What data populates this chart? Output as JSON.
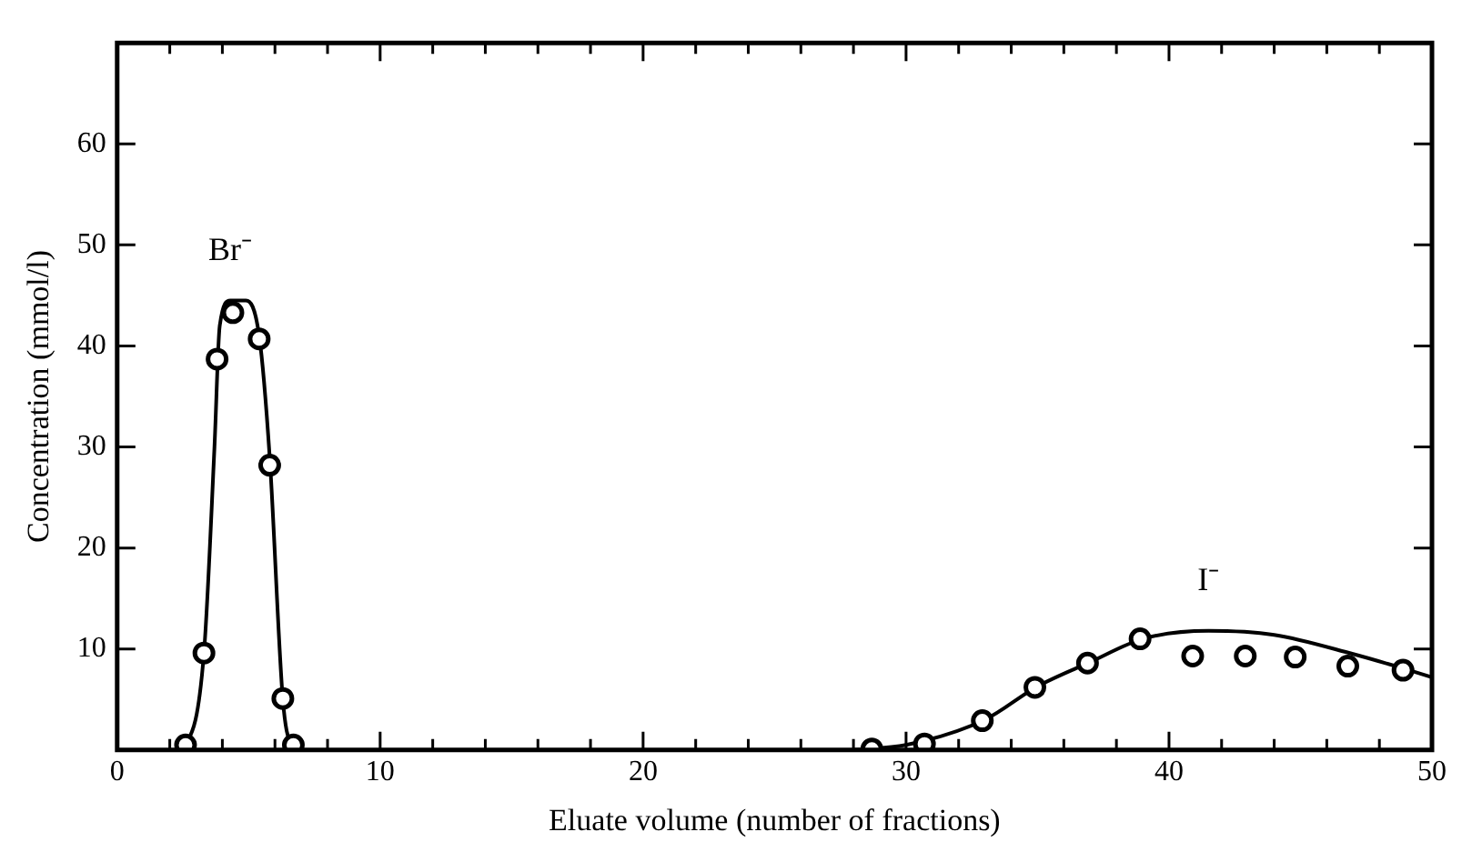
{
  "chart_data": {
    "type": "scatter",
    "xlabel": "Eluate volume (number of fractions)",
    "ylabel": "Concentration (mmol/l)",
    "xlim": [
      0,
      50
    ],
    "ylim": [
      0,
      70
    ],
    "xticks": [
      0,
      {
        "value": 2,
        "label": null
      },
      {
        "value": 4,
        "label": null
      },
      {
        "value": 6,
        "label": null
      },
      {
        "value": 8,
        "label": null
      },
      10,
      {
        "value": 12,
        "label": null
      },
      {
        "value": 14,
        "label": null
      },
      {
        "value": 16,
        "label": null
      },
      {
        "value": 18,
        "label": null
      },
      20,
      {
        "value": 22,
        "label": null
      },
      {
        "value": 24,
        "label": null
      },
      {
        "value": 26,
        "label": null
      },
      {
        "value": 28,
        "label": null
      },
      30,
      {
        "value": 32,
        "label": null
      },
      {
        "value": 34,
        "label": null
      },
      {
        "value": 36,
        "label": null
      },
      {
        "value": 38,
        "label": null
      },
      40,
      {
        "value": 42,
        "label": null
      },
      {
        "value": 44,
        "label": null
      },
      {
        "value": 46,
        "label": null
      },
      {
        "value": 48,
        "label": null
      },
      50
    ],
    "yticks": [
      10,
      20,
      30,
      40,
      50,
      60
    ],
    "grid": false,
    "legend": false,
    "series": [
      {
        "marker": "circle",
        "color": "#000000",
        "x": [
          2.6,
          3.3,
          3.8,
          4.4,
          5.4,
          5.8,
          6.3,
          6.7
        ],
        "values": [
          0.5,
          9.6,
          38.7,
          43.3,
          40.7,
          28.2,
          5.1,
          0.5
        ]
      },
      {
        "type": "line",
        "name": "Br⁻",
        "marker": "none",
        "color": "#000000",
        "x": [
          2.3,
          2.6,
          3.3,
          3.7,
          3.9,
          4.3,
          4.9,
          5.4,
          5.8,
          6.3,
          6.6,
          6.8
        ],
        "values": [
          0,
          0.5,
          9.6,
          30,
          42,
          44.5,
          44.5,
          41,
          29,
          5,
          0.5,
          0
        ]
      },
      {
        "marker": "circle",
        "color": "#000000",
        "x": [
          28.7,
          30.7,
          32.9,
          34.9,
          36.9,
          38.9,
          40.9,
          42.9,
          44.8,
          46.8,
          48.9
        ],
        "values": [
          0.1,
          0.6,
          2.9,
          6.2,
          8.6,
          11.0,
          9.3,
          9.3,
          9.2,
          8.3,
          7.9
        ]
      },
      {
        "type": "line",
        "name": "I⁻",
        "marker": "none",
        "color": "#000000",
        "x": [
          28,
          30,
          33,
          35,
          37,
          39,
          41.5,
          44,
          47,
          49,
          50
        ],
        "values": [
          0,
          0.5,
          3,
          6.3,
          8.7,
          11,
          11.8,
          11.4,
          9.5,
          8,
          7.2
        ]
      }
    ]
  }
}
